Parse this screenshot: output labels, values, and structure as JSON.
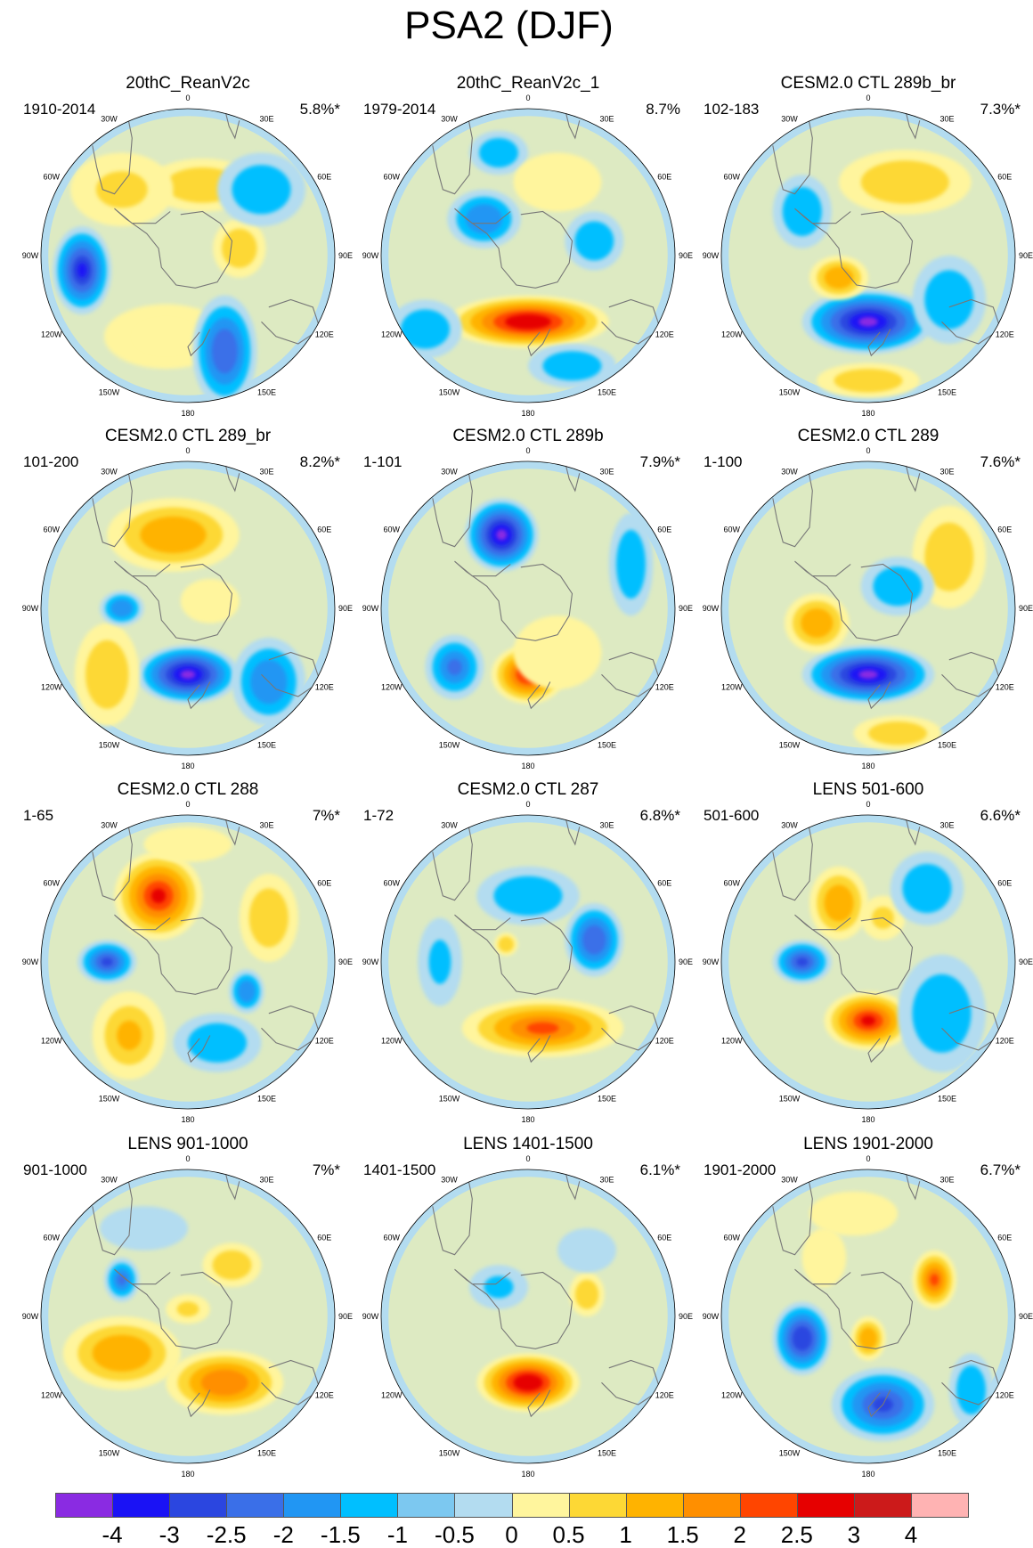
{
  "title": "PSA2 (DJF)",
  "colors": {
    "ocean": "#b3dcf0",
    "coast": "#777777",
    "levels": [
      "#8a2be2",
      "#1a12f5",
      "#2b46e0",
      "#3a6fe8",
      "#2196f3",
      "#00bfff",
      "#7cc8f0",
      "#b3dcf0",
      "#fff59d",
      "#fdd835",
      "#ffb300",
      "#ff8f00",
      "#ff4500",
      "#e60000",
      "#cc1a1a",
      "#ffb3b3"
    ]
  },
  "lon_labels": [
    "0",
    "30E",
    "60E",
    "90E",
    "120E",
    "150E",
    "180",
    "150W",
    "120W",
    "90W",
    "60W",
    "30W"
  ],
  "colorbar": {
    "labels": [
      "-4",
      "-3",
      "-2.5",
      "-2",
      "-1.5",
      "-1",
      "-0.5",
      "0",
      "0.5",
      "1",
      "1.5",
      "2",
      "2.5",
      "3",
      "4"
    ]
  },
  "panels": [
    {
      "title": "20thC_ReanV2c",
      "period": "1910-2014",
      "pct": "5.8%*",
      "blobs": [
        [
          -0.15,
          -0.55,
          0.42,
          0.22,
          0
        ],
        [
          0.1,
          0.48,
          0.38,
          0.18,
          0.8
        ],
        [
          0.35,
          0.05,
          0.18,
          0.2,
          0.7
        ],
        [
          -0.72,
          -0.1,
          0.2,
          0.3,
          -2.5
        ],
        [
          0.25,
          -0.65,
          0.22,
          0.38,
          -1.6
        ],
        [
          -0.45,
          0.45,
          0.35,
          0.25,
          0.5
        ],
        [
          0.5,
          0.45,
          0.3,
          0.25,
          -0.6
        ]
      ]
    },
    {
      "title": "20thC_ReanV2c_1",
      "period": "1979-2014",
      "pct": "8.7%",
      "blobs": [
        [
          0.0,
          -0.45,
          0.55,
          0.18,
          2.6
        ],
        [
          -0.3,
          0.25,
          0.25,
          0.2,
          -1.1
        ],
        [
          0.45,
          0.1,
          0.2,
          0.2,
          -0.8
        ],
        [
          -0.2,
          0.7,
          0.2,
          0.15,
          -0.6
        ],
        [
          0.3,
          -0.75,
          0.3,
          0.15,
          -0.6
        ],
        [
          -0.7,
          -0.5,
          0.25,
          0.2,
          -0.6
        ],
        [
          0.2,
          0.5,
          0.3,
          0.2,
          0.4
        ]
      ]
    },
    {
      "title": "CESM2.0 CTL 289b_br",
      "period": "102-183",
      "pct": "7.3%*",
      "blobs": [
        [
          0.0,
          -0.45,
          0.45,
          0.22,
          -3.0
        ],
        [
          -0.2,
          -0.15,
          0.2,
          0.15,
          1.3
        ],
        [
          0.25,
          0.5,
          0.45,
          0.22,
          0.9
        ],
        [
          0.0,
          -0.85,
          0.35,
          0.12,
          0.7
        ],
        [
          -0.45,
          0.3,
          0.2,
          0.25,
          -0.9
        ],
        [
          0.55,
          -0.3,
          0.25,
          0.3,
          -0.6
        ]
      ]
    },
    {
      "title": "CESM2.0 CTL 289_br",
      "period": "101-200",
      "pct": "8.2%*",
      "blobs": [
        [
          0.0,
          -0.45,
          0.35,
          0.2,
          -3.0
        ],
        [
          -0.1,
          0.5,
          0.45,
          0.25,
          1.1
        ],
        [
          -0.55,
          -0.45,
          0.22,
          0.35,
          0.9
        ],
        [
          -0.45,
          0.0,
          0.15,
          0.12,
          -1.1
        ],
        [
          0.55,
          -0.5,
          0.25,
          0.3,
          -1.2
        ],
        [
          0.15,
          0.05,
          0.2,
          0.15,
          0.4
        ]
      ]
    },
    {
      "title": "CESM2.0 CTL 289b",
      "period": "1-101",
      "pct": "7.9%*",
      "blobs": [
        [
          -0.18,
          0.5,
          0.25,
          0.25,
          -3.0
        ],
        [
          0.0,
          -0.45,
          0.25,
          0.2,
          2.2
        ],
        [
          -0.5,
          -0.4,
          0.2,
          0.22,
          -1.5
        ],
        [
          0.7,
          0.3,
          0.15,
          0.35,
          -0.9
        ],
        [
          0.2,
          -0.3,
          0.3,
          0.25,
          0.4
        ]
      ]
    },
    {
      "title": "CESM2.0 CTL 289",
      "period": "1-100",
      "pct": "7.6%*",
      "blobs": [
        [
          0.0,
          -0.45,
          0.45,
          0.2,
          -3.0
        ],
        [
          -0.35,
          -0.1,
          0.22,
          0.2,
          1.2
        ],
        [
          0.55,
          0.35,
          0.25,
          0.35,
          0.9
        ],
        [
          0.2,
          -0.85,
          0.3,
          0.12,
          0.8
        ],
        [
          0.2,
          0.15,
          0.25,
          0.2,
          -0.7
        ]
      ]
    },
    {
      "title": "CESM2.0 CTL 288",
      "period": "1-65",
      "pct": "7%*",
      "blobs": [
        [
          -0.2,
          0.45,
          0.3,
          0.3,
          2.5
        ],
        [
          -0.55,
          0.0,
          0.2,
          0.15,
          -2.0
        ],
        [
          -0.4,
          -0.5,
          0.25,
          0.3,
          1.0
        ],
        [
          0.55,
          0.3,
          0.2,
          0.3,
          0.8
        ],
        [
          0.4,
          -0.2,
          0.12,
          0.15,
          -1.2
        ],
        [
          0.2,
          -0.55,
          0.3,
          0.2,
          -0.6
        ],
        [
          0.0,
          0.8,
          0.3,
          0.12,
          0.4
        ]
      ]
    },
    {
      "title": "CESM2.0 CTL 287",
      "period": "1-72",
      "pct": "6.8%*",
      "blobs": [
        [
          0.1,
          -0.45,
          0.55,
          0.2,
          2.0
        ],
        [
          0.45,
          0.15,
          0.2,
          0.25,
          -1.8
        ],
        [
          0.0,
          0.45,
          0.35,
          0.2,
          -0.7
        ],
        [
          -0.15,
          0.12,
          0.08,
          0.08,
          0.6
        ],
        [
          -0.6,
          0.0,
          0.15,
          0.3,
          -0.5
        ]
      ]
    },
    {
      "title": "LENS 501-600",
      "period": "501-600",
      "pct": "6.6%*",
      "blobs": [
        [
          0.0,
          -0.4,
          0.3,
          0.2,
          2.5
        ],
        [
          -0.45,
          0.0,
          0.2,
          0.15,
          -2.0
        ],
        [
          -0.2,
          0.4,
          0.2,
          0.25,
          1.4
        ],
        [
          0.1,
          0.3,
          0.15,
          0.15,
          0.5
        ],
        [
          0.5,
          -0.35,
          0.3,
          0.4,
          -0.8
        ],
        [
          0.4,
          0.5,
          0.25,
          0.25,
          -0.6
        ]
      ]
    },
    {
      "title": "LENS 901-1000",
      "period": "901-1000",
      "pct": "7%*",
      "blobs": [
        [
          -0.45,
          -0.25,
          0.4,
          0.25,
          1.3
        ],
        [
          0.25,
          -0.45,
          0.4,
          0.22,
          1.6
        ],
        [
          -0.45,
          0.25,
          0.12,
          0.15,
          -1.5
        ],
        [
          0.3,
          0.35,
          0.2,
          0.15,
          0.6
        ],
        [
          0.0,
          0.05,
          0.15,
          0.1,
          0.5
        ],
        [
          -0.3,
          0.6,
          0.3,
          0.15,
          -0.4
        ]
      ]
    },
    {
      "title": "LENS 1401-1500",
      "period": "1401-1500",
      "pct": "6.1%*",
      "blobs": [
        [
          0.0,
          -0.45,
          0.35,
          0.2,
          2.8
        ],
        [
          0.4,
          0.15,
          0.12,
          0.15,
          0.7
        ],
        [
          -0.2,
          0.2,
          0.2,
          0.15,
          -0.5
        ],
        [
          0.4,
          0.45,
          0.2,
          0.15,
          -0.3
        ]
      ]
    },
    {
      "title": "LENS 1901-2000",
      "period": "1901-2000",
      "pct": "6.7%*",
      "blobs": [
        [
          0.45,
          0.25,
          0.15,
          0.2,
          2.0
        ],
        [
          -0.45,
          -0.15,
          0.2,
          0.25,
          -2.2
        ],
        [
          0.0,
          -0.15,
          0.12,
          0.15,
          1.2
        ],
        [
          0.1,
          -0.6,
          0.35,
          0.25,
          -2.0
        ],
        [
          -0.3,
          0.4,
          0.15,
          0.2,
          0.4
        ],
        [
          0.7,
          -0.5,
          0.15,
          0.25,
          -0.8
        ],
        [
          -0.1,
          0.7,
          0.3,
          0.15,
          0.4
        ]
      ]
    }
  ]
}
